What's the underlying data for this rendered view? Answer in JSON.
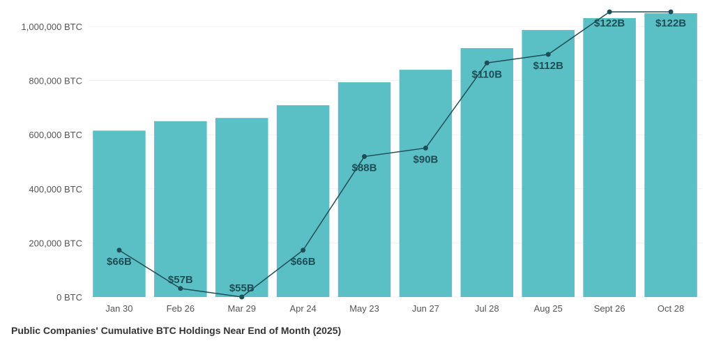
{
  "chart_data": {
    "type": "bar",
    "title": "",
    "caption": "Public Companies' Cumulative BTC Holdings Near End of Month (2025)",
    "categories": [
      "Jan 30",
      "Feb 26",
      "Mar 29",
      "Apr 24",
      "May 23",
      "Jun 27",
      "Jul 28",
      "Aug 25",
      "Sept 26",
      "Oct 28"
    ],
    "series": [
      {
        "type": "bar",
        "values": [
          615000,
          650000,
          662000,
          709000,
          794000,
          840000,
          920000,
          987000,
          1031000,
          1049000
        ],
        "color": "#5bbfc6"
      },
      {
        "type": "line",
        "values": [
          66,
          57,
          55,
          66,
          88,
          90,
          110,
          112,
          122,
          122
        ],
        "labels": [
          "$66B",
          "$57B",
          "$55B",
          "$66B",
          "$88B",
          "$90B",
          "$110B",
          "$112B",
          "$122B",
          "$122B"
        ],
        "color": "#1e4e55",
        "axis": "secondary-hidden",
        "ylim": [
          55,
          122
        ]
      }
    ],
    "yticks": [
      0,
      200000,
      400000,
      600000,
      800000,
      1000000
    ],
    "ytick_labels": [
      "0 BTC",
      "200,000 BTC",
      "400,000 BTC",
      "600,000 BTC",
      "800,000 BTC",
      "1,000,000 BTC"
    ],
    "ylim": [
      0,
      1000000
    ],
    "xlabel": "",
    "ylabel": "",
    "grid": true,
    "legend": "none"
  }
}
